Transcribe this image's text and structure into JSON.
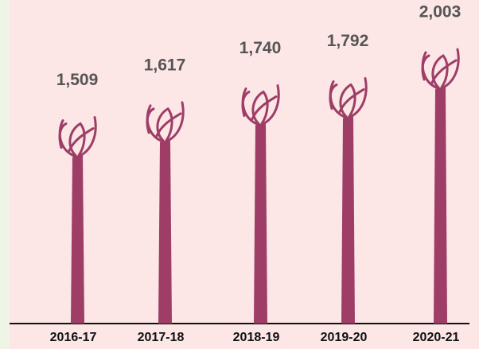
{
  "chart_data": {
    "type": "pictogram",
    "categories": [
      "2016-17",
      "2017-18",
      "2018-19",
      "2019-20",
      "2020-21"
    ],
    "values": [
      1509,
      1617,
      1740,
      1792,
      2003
    ],
    "value_labels": [
      "1,509",
      "1,617",
      "1,740",
      "1,792",
      "2,003"
    ],
    "color": "#9e3d66"
  }
}
